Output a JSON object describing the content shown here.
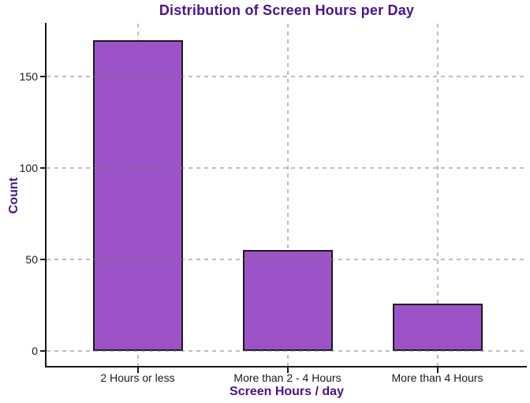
{
  "chart_data": {
    "type": "bar",
    "title": "Distribution of Screen Hours per Day",
    "xlabel": "Screen Hours / day",
    "ylabel": "Count",
    "categories": [
      "2 Hours or less",
      "More than 2 - 4 Hours",
      "More than 4 Hours"
    ],
    "values": [
      170,
      55,
      26
    ],
    "yticks": [
      0,
      50,
      100,
      150
    ],
    "ylim": [
      0,
      179
    ],
    "grid": "dashed light-gray horizontal and vertical gridlines, drawn over bars",
    "legend": "none",
    "colors": {
      "bar_fill": "#9c53c8",
      "bar_border": "#1a1a1a",
      "axis_line": "#1a1a1a",
      "tick_label_text": "#1a1a1a",
      "accent_text": "#4a148c",
      "background": "#ffffff"
    }
  }
}
